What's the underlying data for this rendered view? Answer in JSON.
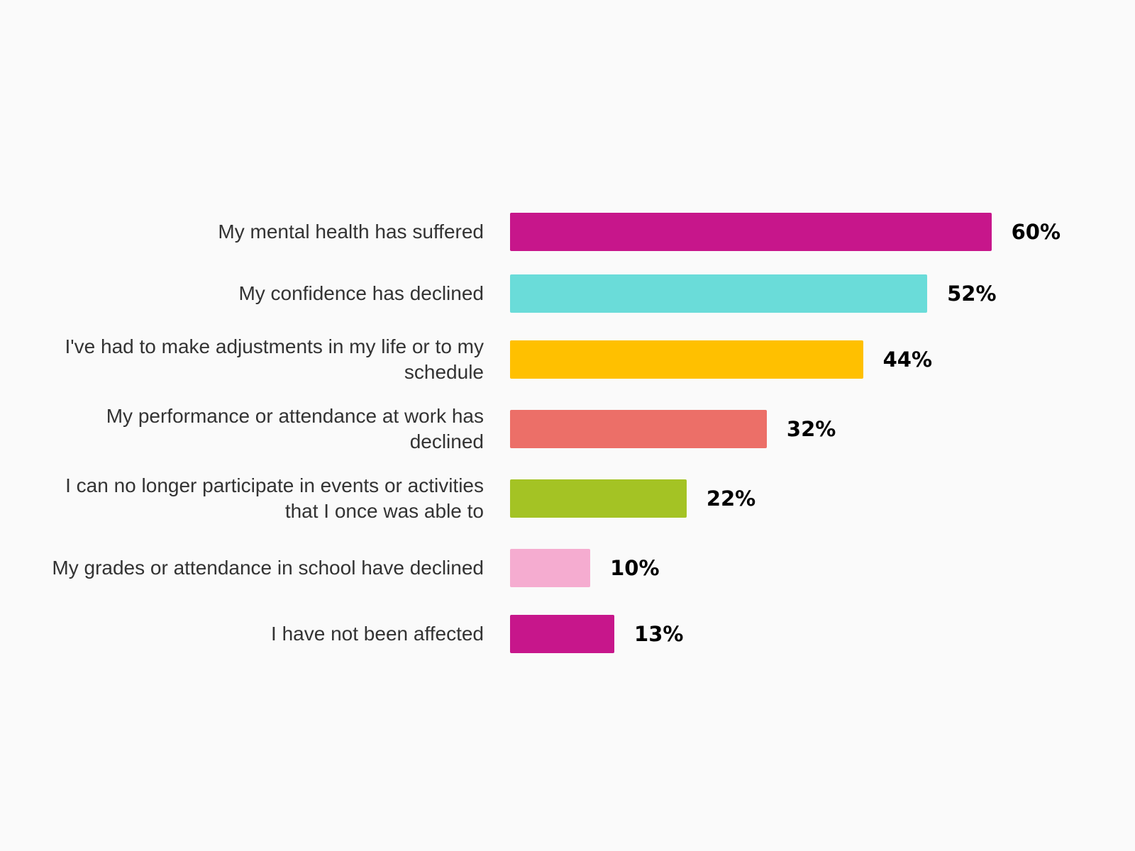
{
  "chart_data": {
    "type": "bar",
    "orientation": "horizontal",
    "categories": [
      "My mental health has suffered",
      "My confidence has declined",
      "I've had to make adjustments in my life or to my schedule",
      "My performance or attendance at work has declined",
      "I can no longer participate in events or activities that I once was able to",
      "My grades or attendance in school have declined",
      "I have not been affected"
    ],
    "values": [
      60,
      52,
      44,
      32,
      22,
      10,
      13
    ],
    "value_labels": [
      "60%",
      "52%",
      "44%",
      "32%",
      "22%",
      "10%",
      "13%"
    ],
    "colors": [
      "#c7168b",
      "#6adcd9",
      "#ffc000",
      "#ec6f68",
      "#a4c324",
      "#f5acd0",
      "#c7168b"
    ]
  }
}
